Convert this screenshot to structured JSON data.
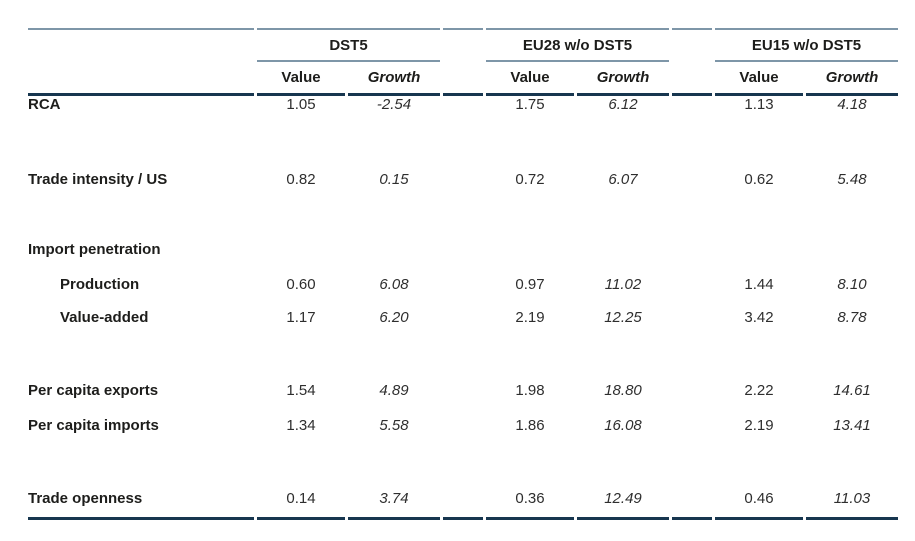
{
  "table": {
    "column_groups": [
      {
        "label": "DST5"
      },
      {
        "label": "EU28 w/o DST5"
      },
      {
        "label": "EU15 w/o DST5"
      }
    ],
    "subheaders": {
      "value": "Value",
      "growth": "Growth"
    },
    "rows": [
      {
        "label": "RCA",
        "indent": false,
        "cells": [
          "1.05",
          "-2.54",
          "1.75",
          "6.12",
          "1.13",
          "4.18"
        ]
      },
      {
        "label": "Trade intensity / US",
        "indent": false,
        "cells": [
          "0.82",
          "0.15",
          "0.72",
          "6.07",
          "0.62",
          "5.48"
        ]
      },
      {
        "label": "Import penetration",
        "indent": false,
        "cells": [
          "",
          "",
          "",
          "",
          "",
          ""
        ]
      },
      {
        "label": "Production",
        "indent": true,
        "cells": [
          "0.60",
          "6.08",
          "0.97",
          "11.02",
          "1.44",
          "8.10"
        ]
      },
      {
        "label": "Value-added",
        "indent": true,
        "cells": [
          "1.17",
          "6.20",
          "2.19",
          "12.25",
          "3.42",
          "8.78"
        ]
      },
      {
        "label": "Per capita exports",
        "indent": false,
        "cells": [
          "1.54",
          "4.89",
          "1.98",
          "18.80",
          "2.22",
          "14.61"
        ]
      },
      {
        "label": "Per capita imports",
        "indent": false,
        "cells": [
          "1.34",
          "5.58",
          "1.86",
          "16.08",
          "2.19",
          "13.41"
        ]
      },
      {
        "label": "Trade openness",
        "indent": false,
        "cells": [
          "0.14",
          "3.74",
          "0.36",
          "12.49",
          "0.46",
          "11.03"
        ]
      }
    ],
    "colors": {
      "rule_light": "#7e96a8",
      "rule_dark": "#17364f",
      "text": "#1d1d1b"
    }
  }
}
